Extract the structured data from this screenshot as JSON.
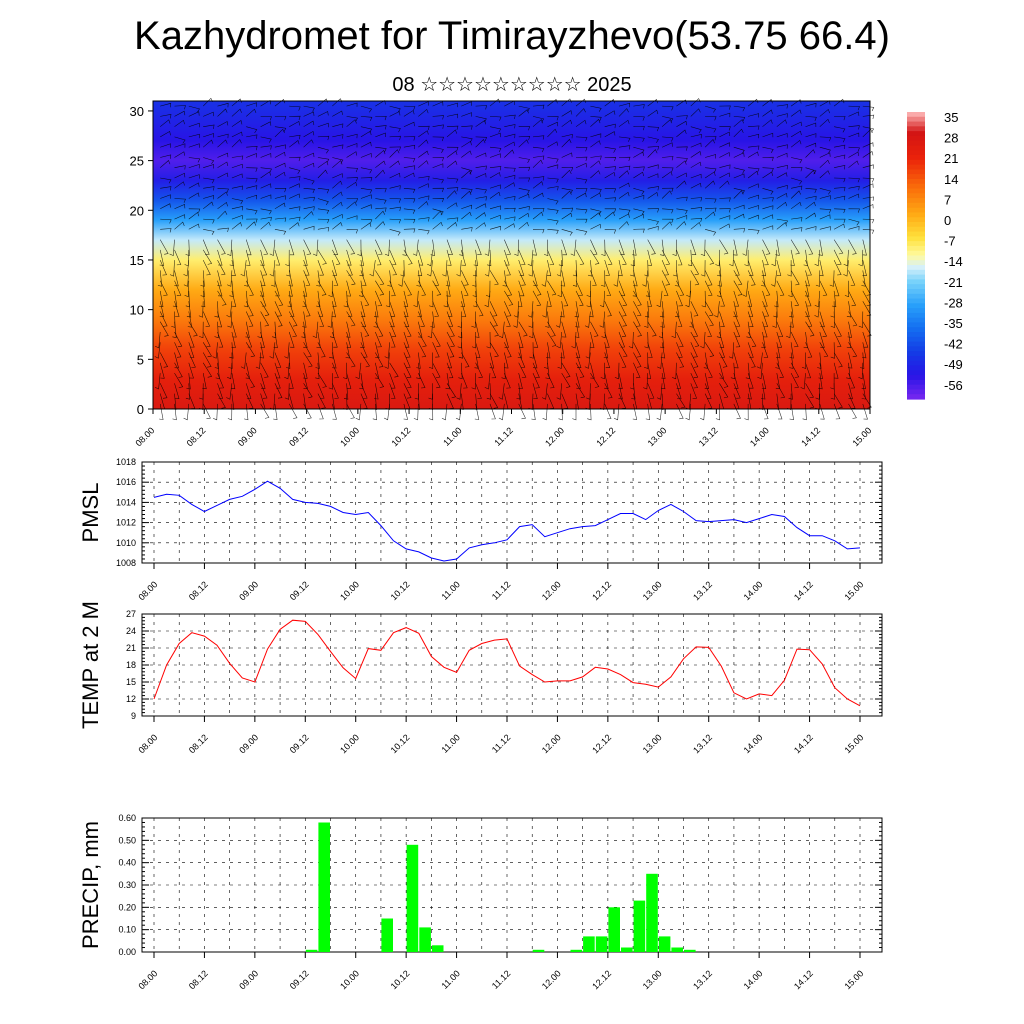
{
  "title": "Kazhydromet for Timirayzhevo(53.75 66.4)",
  "subtitle": "08 ☆☆☆☆☆☆☆☆☆ 2025",
  "colors": {
    "pmsl_line": "#0000ff",
    "temp_line": "#ff0000",
    "precip_bar": "#00ff00",
    "background": "#ffffff",
    "axis": "#000000"
  },
  "time_ticks": [
    "08.00",
    "08.12",
    "09.00",
    "09.12",
    "10.00",
    "10.12",
    "11.00",
    "11.12",
    "12.00",
    "12.12",
    "13.00",
    "13.12",
    "14.00",
    "14.12",
    "15.00"
  ],
  "chart_data": [
    {
      "type": "heatmap",
      "title": "",
      "ylabel": "",
      "ylim": [
        0,
        31
      ],
      "yticks": [
        "0",
        "5",
        "10",
        "15",
        "20",
        "25",
        "30"
      ],
      "xticks": [
        "08.00",
        "08.12",
        "09.00",
        "09.12",
        "10.00",
        "10.12",
        "11.00",
        "11.12",
        "12.00",
        "12.12",
        "13.00",
        "13.12",
        "14.00",
        "14.12",
        "15.00"
      ],
      "colorbar_labels": [
        "35",
        "28",
        "21",
        "14",
        "7",
        "0",
        "-7",
        "-14",
        "-21",
        "-28",
        "-35",
        "-42",
        "-49",
        "-56"
      ],
      "colorbar_range": [
        -60,
        38
      ],
      "temperature_profile": [
        {
          "height": 0,
          "value": 28
        },
        {
          "height": 3,
          "value": 24
        },
        {
          "height": 6,
          "value": 18
        },
        {
          "height": 9,
          "value": 10
        },
        {
          "height": 12,
          "value": 3
        },
        {
          "height": 15,
          "value": -8
        },
        {
          "height": 17,
          "value": -16
        },
        {
          "height": 19,
          "value": -28
        },
        {
          "height": 21,
          "value": -40
        },
        {
          "height": 23,
          "value": -50
        },
        {
          "height": 25,
          "value": -56
        },
        {
          "height": 27,
          "value": -52
        },
        {
          "height": 31,
          "value": -46
        }
      ],
      "overlay": "wind barbs"
    },
    {
      "type": "line",
      "ylabel": "PMSL",
      "ylim": [
        1008,
        1018
      ],
      "yticks": [
        "1008",
        "1010",
        "1012",
        "1014",
        "1016",
        "1018"
      ],
      "xticks": [
        "08.00",
        "08.12",
        "09.00",
        "09.12",
        "10.00",
        "10.12",
        "11.00",
        "11.12",
        "12.00",
        "12.12",
        "13.00",
        "13.12",
        "14.00",
        "14.12",
        "15.00"
      ],
      "grid": true,
      "series": [
        {
          "values": [
            1014.5,
            1014.8,
            1014.7,
            1013.8,
            1013.1,
            1013.7,
            1014.3,
            1014.6,
            1015.3,
            1016.1,
            1015.4,
            1014.3,
            1014.0,
            1013.9,
            1013.6,
            1013.0,
            1012.8,
            1013.0,
            1011.7,
            1010.2,
            1009.4,
            1009.1,
            1008.5,
            1008.2,
            1008.4,
            1009.5,
            1009.8,
            1010.0,
            1010.3,
            1011.6,
            1011.8,
            1010.6,
            1011.0,
            1011.4,
            1011.6,
            1011.7,
            1012.3,
            1012.9,
            1012.9,
            1012.3,
            1013.2,
            1013.8,
            1013.1,
            1012.2,
            1012.1,
            1012.2,
            1012.3,
            1012.0,
            1012.4,
            1012.8,
            1012.6,
            1011.5,
            1010.7,
            1010.7,
            1010.2,
            1009.4,
            1009.5
          ]
        }
      ]
    },
    {
      "type": "line",
      "ylabel": "TEMP at 2 M",
      "ylim": [
        9,
        27
      ],
      "yticks": [
        "9",
        "12",
        "15",
        "18",
        "21",
        "24",
        "27"
      ],
      "xticks": [
        "08.00",
        "08.12",
        "09.00",
        "09.12",
        "10.00",
        "10.12",
        "11.00",
        "11.12",
        "12.00",
        "12.12",
        "13.00",
        "13.12",
        "14.00",
        "14.12",
        "15.00"
      ],
      "grid": true,
      "series": [
        {
          "values": [
            12.0,
            18.0,
            21.8,
            23.7,
            23.1,
            21.5,
            18.3,
            15.7,
            15.0,
            20.8,
            24.3,
            25.9,
            25.7,
            23.4,
            20.4,
            17.5,
            15.6,
            20.9,
            20.6,
            23.7,
            24.6,
            23.6,
            19.5,
            17.6,
            16.7,
            20.6,
            21.8,
            22.4,
            22.6,
            17.8,
            16.3,
            15.0,
            15.2,
            15.2,
            15.9,
            17.6,
            17.3,
            16.3,
            14.9,
            14.6,
            14.1,
            15.9,
            19.1,
            21.2,
            21.1,
            17.8,
            13.1,
            12.0,
            12.9,
            12.6,
            15.3,
            20.8,
            20.7,
            18.2,
            14.0,
            12.0,
            10.8
          ]
        }
      ]
    },
    {
      "type": "bar",
      "ylabel": "PRECIP, mm",
      "ylim": [
        0,
        0.6
      ],
      "yticks": [
        "0.00",
        "0.10",
        "0.20",
        "0.30",
        "0.40",
        "0.50",
        "0.60"
      ],
      "xticks": [
        "08.00",
        "08.12",
        "09.00",
        "09.12",
        "10.00",
        "10.12",
        "11.00",
        "11.12",
        "12.00",
        "12.12",
        "13.00",
        "13.12",
        "14.00",
        "14.12",
        "15.00"
      ],
      "grid": true,
      "values": [
        0,
        0,
        0,
        0,
        0,
        0,
        0,
        0,
        0,
        0,
        0,
        0,
        0.01,
        0.58,
        0,
        0,
        0,
        0,
        0.15,
        0,
        0.48,
        0.11,
        0.03,
        0,
        0,
        0,
        0,
        0,
        0,
        0,
        0.01,
        0,
        0,
        0.01,
        0.07,
        0.07,
        0.2,
        0.02,
        0.23,
        0.35,
        0.07,
        0.02,
        0.01,
        0,
        0,
        0,
        0,
        0,
        0,
        0,
        0,
        0,
        0,
        0,
        0,
        0
      ]
    }
  ]
}
